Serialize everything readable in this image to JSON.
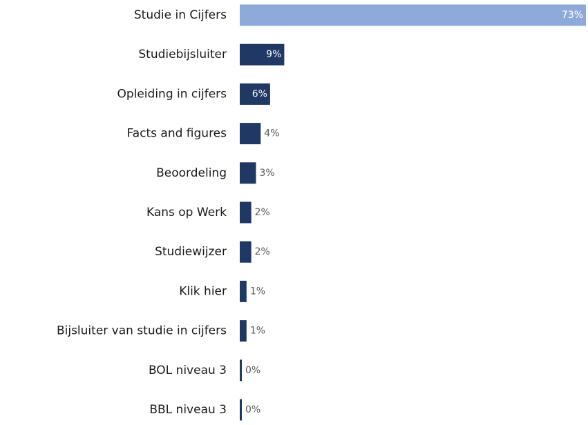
{
  "chart_data": {
    "type": "bar",
    "orientation": "horizontal",
    "categories": [
      "Studie in Cijfers",
      "Studiebijsluiter",
      "Opleiding in cijfers",
      "Facts and figures",
      "Beoordeling",
      "Kans op Werk",
      "Studiewijzer",
      "Klik hier",
      "Bijsluiter van studie in cijfers",
      "BOL niveau 3",
      "BBL niveau 3"
    ],
    "values": [
      73,
      9,
      6,
      4,
      3,
      2,
      2,
      1,
      1,
      0,
      0
    ],
    "value_labels": [
      "73%",
      "9%",
      "6%",
      "4%",
      "3%",
      "2%",
      "2%",
      "1%",
      "1%",
      "0%",
      "0%"
    ],
    "colors": [
      "#8eaadb",
      "#203864",
      "#203864",
      "#203864",
      "#203864",
      "#203864",
      "#203864",
      "#203864",
      "#203864",
      "#203864",
      "#203864"
    ]
  }
}
